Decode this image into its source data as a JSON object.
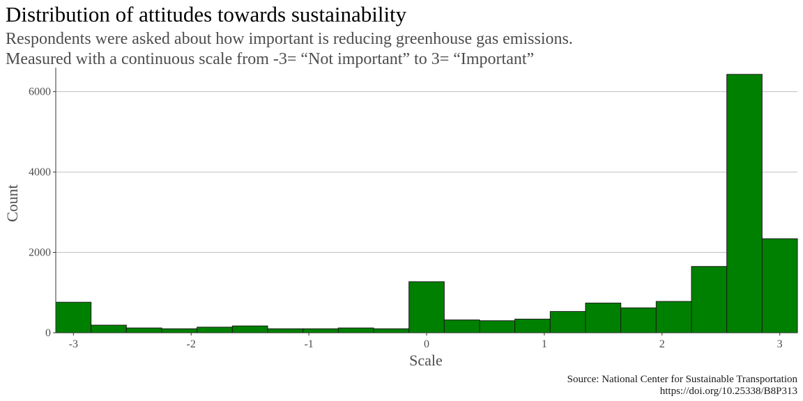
{
  "chart_data": {
    "type": "bar",
    "title": "Distribution of attitudes towards sustainability",
    "subtitle": [
      "Respondents were asked about how important is reducing greenhouse gas emissions.",
      "Measured with a continuous scale from -3= “Not important” to 3= “Important”"
    ],
    "xlabel": "Scale",
    "ylabel": "Count",
    "caption": [
      "Source: National Center for Sustainable Transportation",
      "https://doi.org/10.25338/B8P313"
    ],
    "xlim": [
      -3.15,
      3.15
    ],
    "ylim": [
      0,
      6600
    ],
    "x_ticks": [
      -3,
      -2,
      -1,
      0,
      1,
      2,
      3
    ],
    "x_tick_labels": [
      "-3",
      "-2",
      "-1",
      "0",
      "1",
      "2",
      "3"
    ],
    "y_ticks": [
      0,
      2000,
      4000,
      6000
    ],
    "y_tick_labels": [
      "0",
      "2000",
      "4000",
      "6000"
    ],
    "grid": "horizontal",
    "bar_color": "#008000",
    "bar_outline": "#1a1a1a",
    "gridline_color": "#bebebe",
    "bins": [
      {
        "x0": -3.15,
        "x1": -2.85,
        "count": 760
      },
      {
        "x0": -2.85,
        "x1": -2.55,
        "count": 190
      },
      {
        "x0": -2.55,
        "x1": -2.25,
        "count": 120
      },
      {
        "x0": -2.25,
        "x1": -1.95,
        "count": 100
      },
      {
        "x0": -1.95,
        "x1": -1.65,
        "count": 140
      },
      {
        "x0": -1.65,
        "x1": -1.35,
        "count": 170
      },
      {
        "x0": -1.35,
        "x1": -1.05,
        "count": 100
      },
      {
        "x0": -1.05,
        "x1": -0.75,
        "count": 100
      },
      {
        "x0": -0.75,
        "x1": -0.45,
        "count": 120
      },
      {
        "x0": -0.45,
        "x1": -0.15,
        "count": 100
      },
      {
        "x0": -0.15,
        "x1": 0.15,
        "count": 1270
      },
      {
        "x0": 0.15,
        "x1": 0.45,
        "count": 320
      },
      {
        "x0": 0.45,
        "x1": 0.75,
        "count": 300
      },
      {
        "x0": 0.75,
        "x1": 1.05,
        "count": 340
      },
      {
        "x0": 1.05,
        "x1": 1.35,
        "count": 530
      },
      {
        "x0": 1.35,
        "x1": 1.65,
        "count": 740
      },
      {
        "x0": 1.65,
        "x1": 1.95,
        "count": 620
      },
      {
        "x0": 1.95,
        "x1": 2.25,
        "count": 780
      },
      {
        "x0": 2.25,
        "x1": 2.55,
        "count": 1650
      },
      {
        "x0": 2.55,
        "x1": 2.85,
        "count": 6430
      },
      {
        "x0": 2.85,
        "x1": 3.15,
        "count": 2340
      }
    ]
  }
}
